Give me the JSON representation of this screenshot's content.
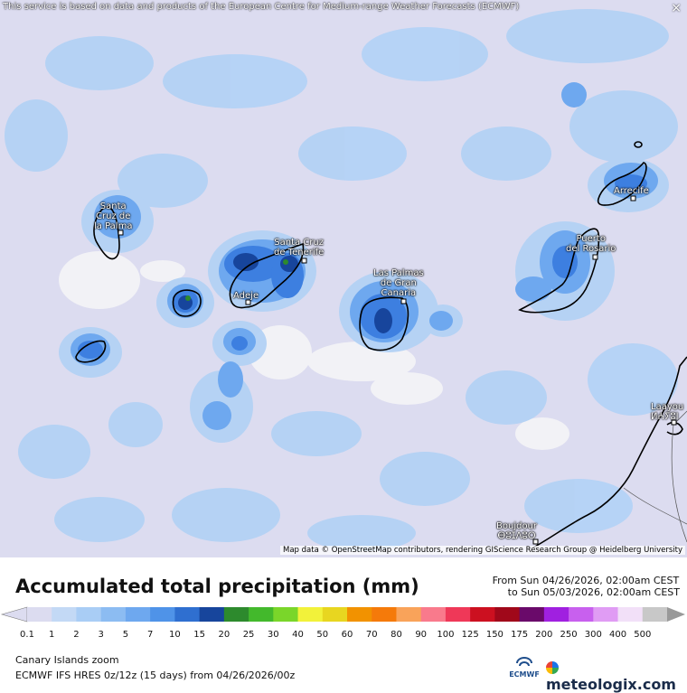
{
  "header": {
    "notice": "This service is based on data and products of the European Centre for Medium-range Weather Forecasts (ECMWF)",
    "close": "×"
  },
  "map": {
    "credit": "Map data © OpenStreetMap contributors, rendering GIScience Research Group @ Heidelberg University",
    "cities": [
      {
        "label": "Santa\nCruz de\nla Palma"
      },
      {
        "label": "Santa Cruz\nde Tenerife"
      },
      {
        "label": "Adeje"
      },
      {
        "label": "Las Palmas\nde Gran\nCanaria"
      },
      {
        "label": "Puerto\ndel Rosario"
      },
      {
        "label": "Arrecife"
      },
      {
        "label": "Laayou\nⵍⵄⵢⵓⵏ"
      },
      {
        "label": "Boujdour\nⴱⵓⵊⴷⵓⵔ"
      }
    ],
    "colors": {
      "background": "#dcdcf0",
      "light_blue": "#a9cdf5",
      "mid_blue": "#6ea8ef",
      "blue": "#3d7fe0",
      "dark_blue": "#1c4fa8",
      "navy": "#133b8a",
      "green": "#2d8a2d",
      "dry": "#f2f2f6",
      "coast": "#000000"
    }
  },
  "legend": {
    "title": "Accumulated total precipitation (mm)",
    "from": "From Sun 04/26/2026, 02:00am CEST",
    "to": "to Sun 05/03/2026, 02:00am CEST",
    "ticks": [
      "0.1",
      "1",
      "2",
      "3",
      "5",
      "7",
      "10",
      "15",
      "20",
      "25",
      "30",
      "40",
      "50",
      "60",
      "70",
      "80",
      "90",
      "100",
      "125",
      "150",
      "175",
      "200",
      "250",
      "300",
      "400",
      "500"
    ],
    "colors": [
      "#dcdcf0",
      "#c3d9f5",
      "#a9cdf5",
      "#8cbcf2",
      "#6ea8ef",
      "#4f93e8",
      "#2f6fd0",
      "#17459c",
      "#2d8a2d",
      "#43b92c",
      "#7ad62a",
      "#f2f23a",
      "#e8d620",
      "#f29200",
      "#f57a0a",
      "#f9a35a",
      "#f97a8c",
      "#ef3858",
      "#cc1020",
      "#a0081a",
      "#6a0a6a",
      "#a020e0",
      "#c860ee",
      "#e09cf4",
      "#f2e0f8",
      "#c8c8c8"
    ]
  },
  "footer": {
    "region": "Canary Islands zoom",
    "model": "ECMWF IFS HRES 0z/12z (15 days) from  04/26/2026/00z",
    "ecmwf_logo": "ECMWF",
    "brand": "meteologix.com",
    "brand_icon": "meteologix-logo-icon"
  }
}
